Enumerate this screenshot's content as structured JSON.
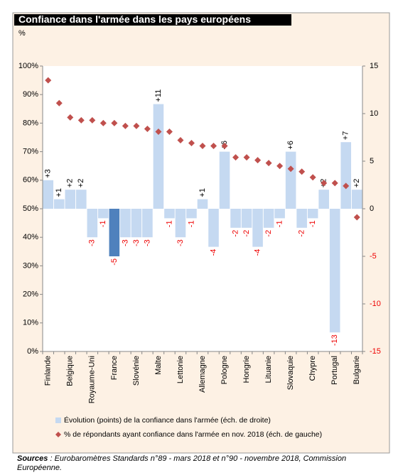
{
  "chart_data": {
    "type": "bar_scatter",
    "title": "Confiance dans l'armée dans les pays européens",
    "ylabel": "%",
    "categories": [
      "Finlande",
      null,
      "Belgique",
      null,
      "Royaume-Uni",
      null,
      "France",
      null,
      "Slovénie",
      null,
      "Malte",
      null,
      "Lettonie",
      null,
      "Allemagne",
      null,
      "Pologne",
      null,
      "Hongrie",
      null,
      "Lituanie",
      null,
      "Slovaquie",
      null,
      "Chypre",
      null,
      "Portugal",
      null,
      "Bulgarie"
    ],
    "ylim": [
      0,
      100
    ],
    "yticks": [
      {
        "value": 0,
        "label": "0%"
      },
      {
        "value": 10,
        "label": "10%"
      },
      {
        "value": 20,
        "label": "20%"
      },
      {
        "value": 30,
        "label": "30%"
      },
      {
        "value": 40,
        "label": "40%"
      },
      {
        "value": 50,
        "label": "50%"
      },
      {
        "value": 60,
        "label": "60%"
      },
      {
        "value": 70,
        "label": "70%"
      },
      {
        "value": 80,
        "label": "80%"
      },
      {
        "value": 90,
        "label": "90%"
      },
      {
        "value": 100,
        "label": "100%"
      }
    ],
    "y2lim": [
      -15,
      15
    ],
    "y2ticks": [
      -15,
      -10,
      -5,
      0,
      5,
      10,
      15
    ],
    "series": [
      {
        "name": "Évolution (points) de la confiance dans l'armée (éch. de droite)",
        "type": "bar",
        "axis": "y2",
        "color": "#c5d9f1",
        "colors": [
          "#c5d9f1",
          "#c5d9f1",
          "#c5d9f1",
          "#c5d9f1",
          "#c5d9f1",
          "#c5d9f1",
          "#4f81bd",
          "#c5d9f1",
          "#c5d9f1",
          "#c5d9f1",
          "#c5d9f1",
          "#c5d9f1",
          "#c5d9f1",
          "#c5d9f1",
          "#c5d9f1",
          "#c5d9f1",
          "#c5d9f1",
          "#c5d9f1",
          "#c5d9f1",
          "#c5d9f1",
          "#c5d9f1",
          "#c5d9f1",
          "#c5d9f1",
          "#c5d9f1",
          "#c5d9f1",
          "#c5d9f1",
          "#c5d9f1",
          "#c5d9f1",
          "#c5d9f1"
        ],
        "values": [
          3,
          1,
          2,
          2,
          -3,
          -1,
          -5,
          -3,
          -3,
          -3,
          11,
          -1,
          -3,
          -1,
          1,
          -4,
          6,
          -2,
          -2,
          -4,
          -2,
          -1,
          6,
          -2,
          -1,
          2,
          -13,
          7,
          2
        ],
        "value_labels": [
          "+3",
          "+1",
          "+2",
          "+2",
          "-3",
          "-1",
          "-5",
          "-3",
          "-3",
          "-3",
          "+11",
          "-1",
          "-3",
          "-1",
          "+1",
          "-4",
          "+6",
          "-2",
          "-2",
          "-4",
          "-2",
          "-1",
          "+6",
          "-2",
          "-1",
          "+2",
          "-13",
          "+7",
          "+2"
        ]
      },
      {
        "name": "% de répondants ayant confiance dans l'armée en nov. 2018 (éch. de gauche)",
        "type": "scatter",
        "color": "#c0504d",
        "values": [
          95,
          87,
          82,
          81,
          81,
          80,
          80,
          79,
          79,
          78,
          77,
          77,
          74,
          73,
          72,
          72,
          72,
          68,
          68,
          67,
          66,
          65,
          64,
          63,
          61,
          59,
          59,
          58,
          47
        ]
      }
    ],
    "sources_label": "Sources",
    "sources_text": " : Eurobaromètres Standards n°89 - mars 2018 et n°90 - novembre 2018, Commission Européenne."
  }
}
